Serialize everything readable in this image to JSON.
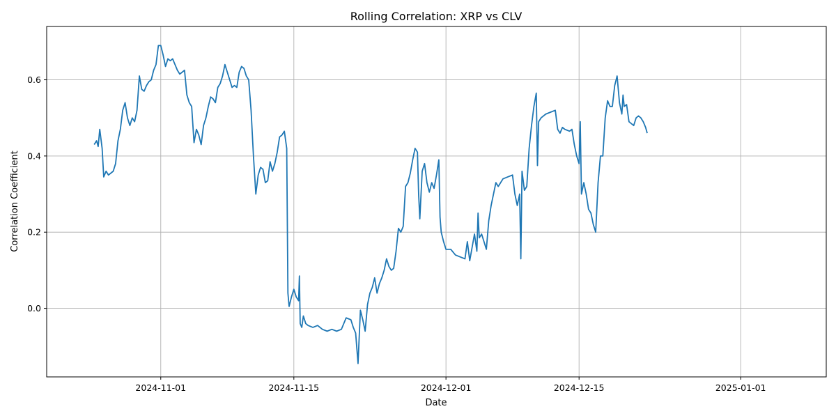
{
  "chart_data": {
    "type": "line",
    "title": "Rolling Correlation: XRP vs CLV",
    "xlabel": "Date",
    "ylabel": "Correlation Coefficient",
    "grid": true,
    "color": "#1f77b4",
    "x_ticks": [
      "2024-11-01",
      "2024-11-15",
      "2024-12-01",
      "2024-12-15",
      "2025-01-01"
    ],
    "y_ticks": [
      0.0,
      0.2,
      0.4,
      0.6
    ],
    "y_tick_labels": [
      "0.0",
      "0.2",
      "0.4",
      "0.6"
    ],
    "xlim": [
      "2024-10-20",
      "2025-01-10"
    ],
    "ylim": [
      -0.18,
      0.74
    ],
    "series": [
      {
        "points": [
          [
            "2024-10-25 00:00",
            0.43
          ],
          [
            "2024-10-25 06:00",
            0.44
          ],
          [
            "2024-10-25 10:00",
            0.425
          ],
          [
            "2024-10-25 14:00",
            0.47
          ],
          [
            "2024-10-25 20:00",
            0.42
          ],
          [
            "2024-10-26 00:00",
            0.345
          ],
          [
            "2024-10-26 06:00",
            0.36
          ],
          [
            "2024-10-26 12:00",
            0.35
          ],
          [
            "2024-10-26 18:00",
            0.355
          ],
          [
            "2024-10-27 00:00",
            0.36
          ],
          [
            "2024-10-27 06:00",
            0.38
          ],
          [
            "2024-10-27 12:00",
            0.44
          ],
          [
            "2024-10-27 18:00",
            0.47
          ],
          [
            "2024-10-28 00:00",
            0.52
          ],
          [
            "2024-10-28 06:00",
            0.54
          ],
          [
            "2024-10-28 12:00",
            0.5
          ],
          [
            "2024-10-28 18:00",
            0.48
          ],
          [
            "2024-10-29 00:00",
            0.5
          ],
          [
            "2024-10-29 06:00",
            0.49
          ],
          [
            "2024-10-29 12:00",
            0.52
          ],
          [
            "2024-10-29 18:00",
            0.61
          ],
          [
            "2024-10-30 00:00",
            0.575
          ],
          [
            "2024-10-30 06:00",
            0.57
          ],
          [
            "2024-10-30 12:00",
            0.585
          ],
          [
            "2024-10-30 18:00",
            0.595
          ],
          [
            "2024-10-31 00:00",
            0.6
          ],
          [
            "2024-10-31 06:00",
            0.625
          ],
          [
            "2024-10-31 12:00",
            0.64
          ],
          [
            "2024-10-31 18:00",
            0.69
          ],
          [
            "2024-11-01 00:00",
            0.69
          ],
          [
            "2024-11-01 06:00",
            0.665
          ],
          [
            "2024-11-01 12:00",
            0.635
          ],
          [
            "2024-11-01 18:00",
            0.655
          ],
          [
            "2024-11-02 00:00",
            0.65
          ],
          [
            "2024-11-02 06:00",
            0.655
          ],
          [
            "2024-11-02 12:00",
            0.64
          ],
          [
            "2024-11-02 18:00",
            0.625
          ],
          [
            "2024-11-03 00:00",
            0.615
          ],
          [
            "2024-11-03 06:00",
            0.62
          ],
          [
            "2024-11-03 12:00",
            0.625
          ],
          [
            "2024-11-03 18:00",
            0.56
          ],
          [
            "2024-11-04 00:00",
            0.54
          ],
          [
            "2024-11-04 06:00",
            0.53
          ],
          [
            "2024-11-04 12:00",
            0.435
          ],
          [
            "2024-11-04 18:00",
            0.47
          ],
          [
            "2024-11-05 00:00",
            0.455
          ],
          [
            "2024-11-05 06:00",
            0.43
          ],
          [
            "2024-11-05 12:00",
            0.48
          ],
          [
            "2024-11-05 18:00",
            0.5
          ],
          [
            "2024-11-06 00:00",
            0.53
          ],
          [
            "2024-11-06 06:00",
            0.555
          ],
          [
            "2024-11-06 12:00",
            0.55
          ],
          [
            "2024-11-06 18:00",
            0.54
          ],
          [
            "2024-11-07 00:00",
            0.58
          ],
          [
            "2024-11-07 06:00",
            0.59
          ],
          [
            "2024-11-07 12:00",
            0.61
          ],
          [
            "2024-11-07 18:00",
            0.64
          ],
          [
            "2024-11-08 00:00",
            0.62
          ],
          [
            "2024-11-08 06:00",
            0.6
          ],
          [
            "2024-11-08 12:00",
            0.58
          ],
          [
            "2024-11-08 18:00",
            0.585
          ],
          [
            "2024-11-09 00:00",
            0.58
          ],
          [
            "2024-11-09 06:00",
            0.62
          ],
          [
            "2024-11-09 12:00",
            0.635
          ],
          [
            "2024-11-09 18:00",
            0.63
          ],
          [
            "2024-11-10 00:00",
            0.61
          ],
          [
            "2024-11-10 06:00",
            0.6
          ],
          [
            "2024-11-10 12:00",
            0.52
          ],
          [
            "2024-11-10 18:00",
            0.4
          ],
          [
            "2024-11-11 00:00",
            0.3
          ],
          [
            "2024-11-11 06:00",
            0.35
          ],
          [
            "2024-11-11 12:00",
            0.37
          ],
          [
            "2024-11-11 18:00",
            0.365
          ],
          [
            "2024-11-12 00:00",
            0.33
          ],
          [
            "2024-11-12 06:00",
            0.335
          ],
          [
            "2024-11-12 12:00",
            0.385
          ],
          [
            "2024-11-12 18:00",
            0.36
          ],
          [
            "2024-11-13 00:00",
            0.38
          ],
          [
            "2024-11-13 06:00",
            0.41
          ],
          [
            "2024-11-13 12:00",
            0.45
          ],
          [
            "2024-11-13 18:00",
            0.455
          ],
          [
            "2024-11-14 00:00",
            0.465
          ],
          [
            "2024-11-14 06:00",
            0.42
          ],
          [
            "2024-11-14 09:00",
            0.04
          ],
          [
            "2024-11-14 12:00",
            0.005
          ],
          [
            "2024-11-14 18:00",
            0.03
          ],
          [
            "2024-11-15 00:00",
            0.05
          ],
          [
            "2024-11-15 06:00",
            0.03
          ],
          [
            "2024-11-15 12:00",
            0.02
          ],
          [
            "2024-11-15 14:00",
            0.085
          ],
          [
            "2024-11-15 16:00",
            -0.04
          ],
          [
            "2024-11-15 20:00",
            -0.05
          ],
          [
            "2024-11-16 00:00",
            -0.02
          ],
          [
            "2024-11-16 06:00",
            -0.04
          ],
          [
            "2024-11-16 12:00",
            -0.045
          ],
          [
            "2024-11-17 00:00",
            -0.05
          ],
          [
            "2024-11-17 12:00",
            -0.045
          ],
          [
            "2024-11-18 00:00",
            -0.055
          ],
          [
            "2024-11-18 12:00",
            -0.06
          ],
          [
            "2024-11-19 00:00",
            -0.055
          ],
          [
            "2024-11-19 12:00",
            -0.06
          ],
          [
            "2024-11-20 00:00",
            -0.055
          ],
          [
            "2024-11-20 12:00",
            -0.025
          ],
          [
            "2024-11-21 00:00",
            -0.03
          ],
          [
            "2024-11-21 06:00",
            -0.05
          ],
          [
            "2024-11-21 12:00",
            -0.065
          ],
          [
            "2024-11-21 18:00",
            -0.145
          ],
          [
            "2024-11-22 00:00",
            -0.005
          ],
          [
            "2024-11-22 06:00",
            -0.03
          ],
          [
            "2024-11-22 12:00",
            -0.06
          ],
          [
            "2024-11-22 18:00",
            0.01
          ],
          [
            "2024-11-23 00:00",
            0.04
          ],
          [
            "2024-11-23 06:00",
            0.055
          ],
          [
            "2024-11-23 12:00",
            0.08
          ],
          [
            "2024-11-23 18:00",
            0.04
          ],
          [
            "2024-11-24 00:00",
            0.065
          ],
          [
            "2024-11-24 06:00",
            0.08
          ],
          [
            "2024-11-24 12:00",
            0.1
          ],
          [
            "2024-11-24 18:00",
            0.13
          ],
          [
            "2024-11-25 00:00",
            0.11
          ],
          [
            "2024-11-25 06:00",
            0.1
          ],
          [
            "2024-11-25 12:00",
            0.105
          ],
          [
            "2024-11-25 18:00",
            0.15
          ],
          [
            "2024-11-26 00:00",
            0.21
          ],
          [
            "2024-11-26 06:00",
            0.2
          ],
          [
            "2024-11-26 12:00",
            0.215
          ],
          [
            "2024-11-26 18:00",
            0.32
          ],
          [
            "2024-11-27 00:00",
            0.33
          ],
          [
            "2024-11-27 06:00",
            0.355
          ],
          [
            "2024-11-27 12:00",
            0.39
          ],
          [
            "2024-11-27 18:00",
            0.42
          ],
          [
            "2024-11-28 00:00",
            0.41
          ],
          [
            "2024-11-28 03:00",
            0.3
          ],
          [
            "2024-11-28 06:00",
            0.235
          ],
          [
            "2024-11-28 12:00",
            0.36
          ],
          [
            "2024-11-28 18:00",
            0.38
          ],
          [
            "2024-11-29 00:00",
            0.33
          ],
          [
            "2024-11-29 06:00",
            0.305
          ],
          [
            "2024-11-29 12:00",
            0.33
          ],
          [
            "2024-11-29 18:00",
            0.315
          ],
          [
            "2024-11-30 00:00",
            0.35
          ],
          [
            "2024-11-30 06:00",
            0.39
          ],
          [
            "2024-11-30 09:00",
            0.24
          ],
          [
            "2024-11-30 12:00",
            0.2
          ],
          [
            "2024-11-30 18:00",
            0.175
          ],
          [
            "2024-12-01 00:00",
            0.155
          ],
          [
            "2024-12-01 12:00",
            0.155
          ],
          [
            "2024-12-02 00:00",
            0.14
          ],
          [
            "2024-12-02 12:00",
            0.135
          ],
          [
            "2024-12-03 00:00",
            0.13
          ],
          [
            "2024-12-03 06:00",
            0.175
          ],
          [
            "2024-12-03 12:00",
            0.125
          ],
          [
            "2024-12-03 18:00",
            0.16
          ],
          [
            "2024-12-04 00:00",
            0.195
          ],
          [
            "2024-12-04 06:00",
            0.15
          ],
          [
            "2024-12-04 09:00",
            0.25
          ],
          [
            "2024-12-04 12:00",
            0.185
          ],
          [
            "2024-12-04 18:00",
            0.195
          ],
          [
            "2024-12-05 00:00",
            0.175
          ],
          [
            "2024-12-05 06:00",
            0.155
          ],
          [
            "2024-12-05 12:00",
            0.23
          ],
          [
            "2024-12-05 18:00",
            0.27
          ],
          [
            "2024-12-06 00:00",
            0.3
          ],
          [
            "2024-12-06 06:00",
            0.33
          ],
          [
            "2024-12-06 12:00",
            0.32
          ],
          [
            "2024-12-06 18:00",
            0.33
          ],
          [
            "2024-12-07 00:00",
            0.34
          ],
          [
            "2024-12-07 12:00",
            0.345
          ],
          [
            "2024-12-08 00:00",
            0.35
          ],
          [
            "2024-12-08 06:00",
            0.3
          ],
          [
            "2024-12-08 12:00",
            0.27
          ],
          [
            "2024-12-08 18:00",
            0.3
          ],
          [
            "2024-12-08 21:00",
            0.13
          ],
          [
            "2024-12-09 00:00",
            0.36
          ],
          [
            "2024-12-09 06:00",
            0.31
          ],
          [
            "2024-12-09 12:00",
            0.32
          ],
          [
            "2024-12-09 18:00",
            0.42
          ],
          [
            "2024-12-10 00:00",
            0.48
          ],
          [
            "2024-12-10 06:00",
            0.53
          ],
          [
            "2024-12-10 12:00",
            0.565
          ],
          [
            "2024-12-10 15:00",
            0.375
          ],
          [
            "2024-12-10 18:00",
            0.49
          ],
          [
            "2024-12-11 00:00",
            0.5
          ],
          [
            "2024-12-11 12:00",
            0.51
          ],
          [
            "2024-12-12 00:00",
            0.515
          ],
          [
            "2024-12-12 12:00",
            0.52
          ],
          [
            "2024-12-12 18:00",
            0.47
          ],
          [
            "2024-12-13 00:00",
            0.46
          ],
          [
            "2024-12-13 06:00",
            0.475
          ],
          [
            "2024-12-13 12:00",
            0.47
          ],
          [
            "2024-12-14 00:00",
            0.465
          ],
          [
            "2024-12-14 06:00",
            0.47
          ],
          [
            "2024-12-14 12:00",
            0.43
          ],
          [
            "2024-12-14 18:00",
            0.4
          ],
          [
            "2024-12-15 00:00",
            0.38
          ],
          [
            "2024-12-15 03:00",
            0.49
          ],
          [
            "2024-12-15 06:00",
            0.3
          ],
          [
            "2024-12-15 12:00",
            0.33
          ],
          [
            "2024-12-15 18:00",
            0.3
          ],
          [
            "2024-12-16 00:00",
            0.26
          ],
          [
            "2024-12-16 06:00",
            0.25
          ],
          [
            "2024-12-16 12:00",
            0.22
          ],
          [
            "2024-12-16 18:00",
            0.2
          ],
          [
            "2024-12-17 00:00",
            0.33
          ],
          [
            "2024-12-17 06:00",
            0.4
          ],
          [
            "2024-12-17 12:00",
            0.4
          ],
          [
            "2024-12-17 18:00",
            0.5
          ],
          [
            "2024-12-18 00:00",
            0.545
          ],
          [
            "2024-12-18 06:00",
            0.53
          ],
          [
            "2024-12-18 12:00",
            0.53
          ],
          [
            "2024-12-18 18:00",
            0.585
          ],
          [
            "2024-12-19 00:00",
            0.61
          ],
          [
            "2024-12-19 06:00",
            0.54
          ],
          [
            "2024-12-19 12:00",
            0.51
          ],
          [
            "2024-12-19 15:00",
            0.56
          ],
          [
            "2024-12-19 18:00",
            0.53
          ],
          [
            "2024-12-20 00:00",
            0.535
          ],
          [
            "2024-12-20 06:00",
            0.49
          ],
          [
            "2024-12-20 12:00",
            0.485
          ],
          [
            "2024-12-20 18:00",
            0.48
          ],
          [
            "2024-12-21 00:00",
            0.5
          ],
          [
            "2024-12-21 06:00",
            0.505
          ],
          [
            "2024-12-21 12:00",
            0.5
          ],
          [
            "2024-12-21 18:00",
            0.49
          ],
          [
            "2024-12-22 00:00",
            0.475
          ],
          [
            "2024-12-22 04:00",
            0.46
          ]
        ]
      }
    ]
  }
}
